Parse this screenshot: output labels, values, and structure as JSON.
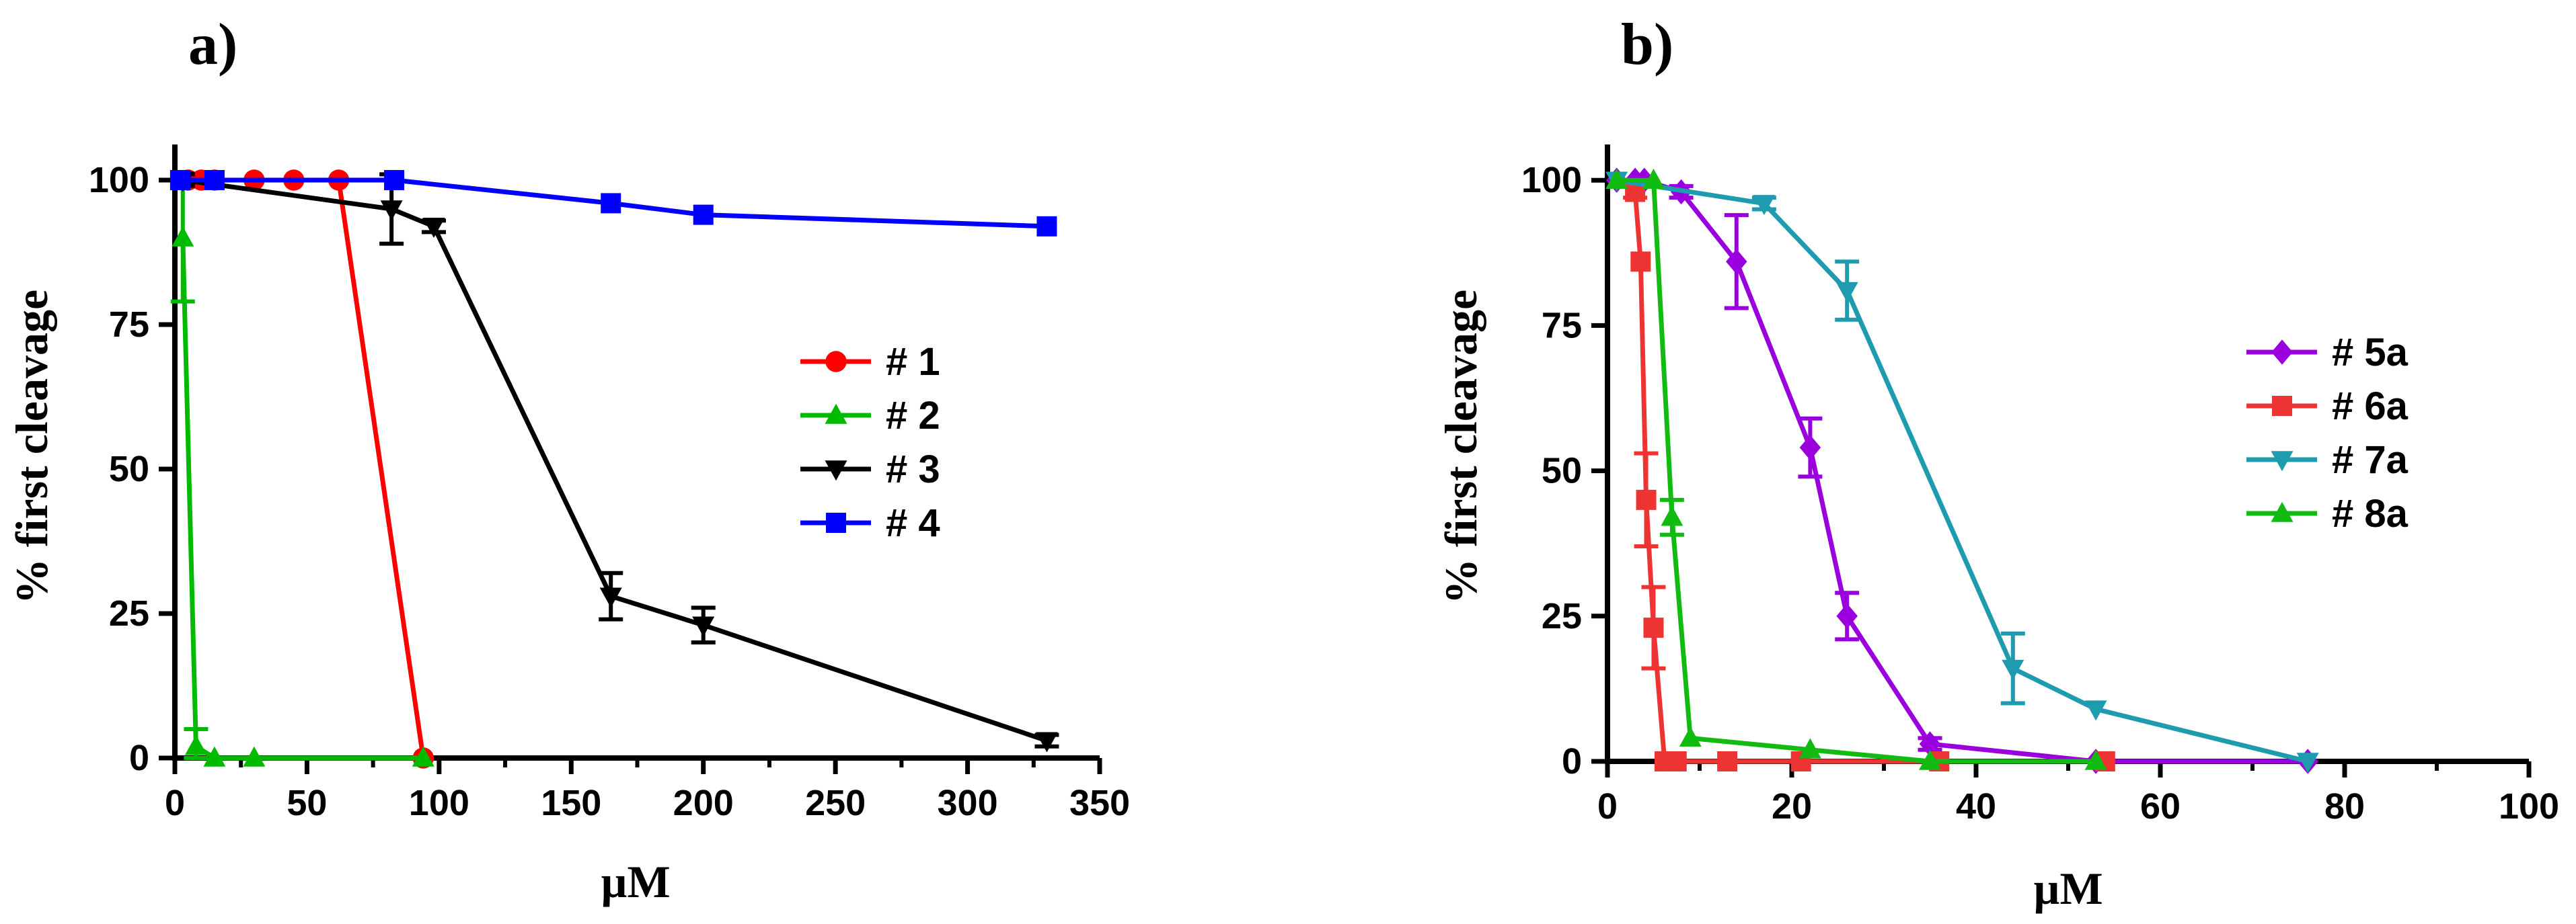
{
  "chart_data": [
    {
      "type": "line",
      "panel": "a)",
      "xlabel": "µM",
      "ylabel": "% first cleavage",
      "xlim": [
        0,
        350
      ],
      "ylim": [
        0,
        105
      ],
      "xticks": [
        "0",
        "50",
        "100",
        "150",
        "200",
        "250",
        "300",
        "350"
      ],
      "yticks": [
        "0",
        "25",
        "50",
        "75",
        "100"
      ],
      "legend_position": "right",
      "series": [
        {
          "name": "# 1",
          "color": "#ff0000",
          "marker": "circle",
          "x": [
            5,
            10,
            15,
            30,
            45,
            62,
            94
          ],
          "y": [
            100,
            100,
            100,
            100,
            100,
            100,
            0
          ]
        },
        {
          "name": "# 2",
          "color": "#00bb00",
          "marker": "triangle-up",
          "x": [
            3,
            8,
            15,
            30,
            94
          ],
          "y": [
            90,
            2,
            0,
            0,
            0
          ],
          "err": [
            11,
            3,
            0,
            0,
            0
          ]
        },
        {
          "name": "# 3",
          "color": "#000000",
          "marker": "triangle-down",
          "x": [
            3,
            82,
            98,
            165,
            200,
            330
          ],
          "y": [
            100,
            95,
            92,
            28,
            23,
            3
          ],
          "err": [
            1,
            6,
            1,
            4,
            3,
            1
          ]
        },
        {
          "name": "# 4",
          "color": "#0000ff",
          "marker": "square",
          "x": [
            2,
            15,
            83,
            165,
            200,
            330
          ],
          "y": [
            100,
            100,
            100,
            96,
            94,
            92
          ]
        }
      ]
    },
    {
      "type": "line",
      "panel": "b)",
      "xlabel": "µM",
      "ylabel": "% first cleavage",
      "xlim": [
        0,
        100
      ],
      "ylim": [
        0,
        105
      ],
      "xticks": [
        "0",
        "20",
        "40",
        "60",
        "80",
        "100"
      ],
      "yticks": [
        "0",
        "25",
        "50",
        "75",
        "100"
      ],
      "legend_position": "right",
      "series": [
        {
          "name": "# 5a",
          "color": "#9900dd",
          "marker": "diamond",
          "x": [
            1,
            3,
            4,
            8,
            14,
            22,
            26,
            35,
            53,
            76
          ],
          "y": [
            100,
            100,
            100,
            98,
            86,
            54,
            25,
            3,
            0,
            0
          ],
          "err": [
            0,
            0,
            0,
            1,
            8,
            5,
            4,
            1,
            0,
            0
          ]
        },
        {
          "name": "# 6a",
          "color": "#ee3333",
          "marker": "square",
          "x": [
            3,
            3.6,
            4.2,
            5,
            6.2,
            7.5,
            13,
            21,
            36,
            54
          ],
          "y": [
            98,
            86,
            45,
            23,
            0,
            0,
            0,
            0,
            0,
            0
          ],
          "err": [
            1,
            0,
            8,
            7,
            0,
            0,
            0,
            0,
            0,
            0
          ]
        },
        {
          "name": "# 7a",
          "color": "#1f9bb0",
          "marker": "triangle-down",
          "x": [
            1,
            17,
            26,
            44,
            53,
            76
          ],
          "y": [
            100,
            96,
            81,
            16,
            9,
            0
          ],
          "err": [
            0,
            1,
            5,
            6,
            0,
            0
          ]
        },
        {
          "name": "# 8a",
          "color": "#11bb11",
          "marker": "triangle-up",
          "x": [
            1,
            5,
            7,
            9,
            22,
            35,
            53
          ],
          "y": [
            100,
            100,
            42,
            4,
            2,
            0,
            0
          ],
          "err": [
            0,
            0,
            3,
            0,
            0,
            0,
            0
          ]
        }
      ]
    }
  ]
}
